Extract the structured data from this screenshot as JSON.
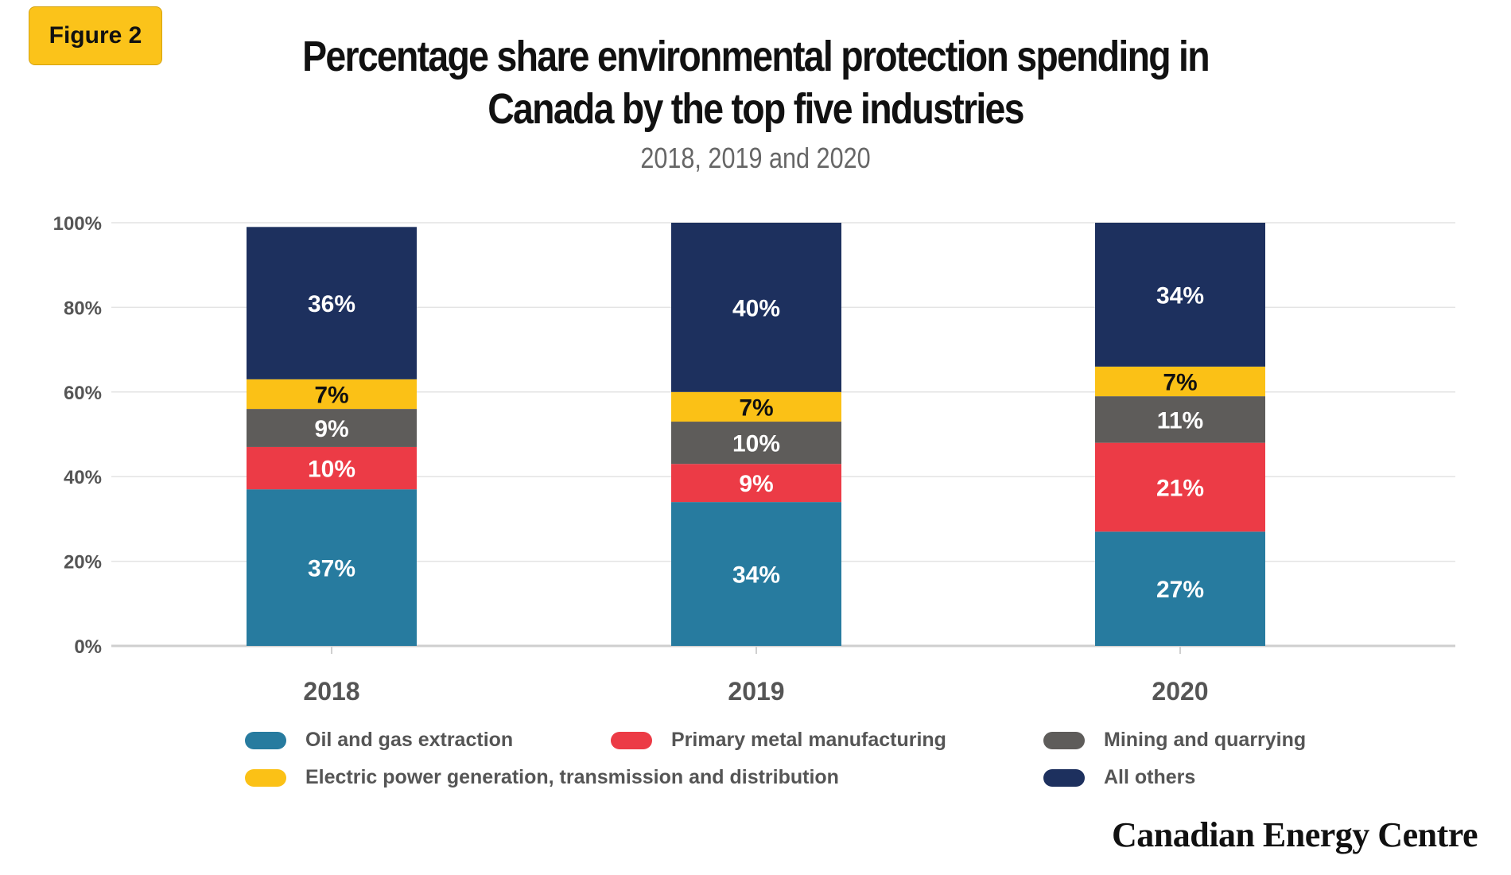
{
  "badge": "Figure 2",
  "title_line1": "Percentage share environmental protection spending in",
  "title_line2": "Canada by the top five industries",
  "subtitle": "2018, 2019 and 2020",
  "brand": "Canadian Energy Centre",
  "legend": [
    {
      "label": "Oil and gas extraction",
      "color": "#277b9f"
    },
    {
      "label": "Primary metal manufacturing",
      "color": "#ec3b46"
    },
    {
      "label": "Mining and quarrying",
      "color": "#5e5c5a"
    },
    {
      "label": "Electric power generation, transmission and distribution",
      "color": "#fbc116"
    },
    {
      "label": "All others",
      "color": "#1d305e"
    }
  ],
  "chart_data": {
    "type": "bar",
    "stacked": true,
    "categories": [
      "2018",
      "2019",
      "2020"
    ],
    "ylim": [
      0,
      100
    ],
    "yticks": [
      "0%",
      "20%",
      "40%",
      "60%",
      "80%",
      "100%"
    ],
    "grid": true,
    "legend_position": "bottom",
    "series": [
      {
        "name": "Oil and gas extraction",
        "color": "#277b9f",
        "values": [
          37,
          34,
          27
        ],
        "labels": [
          "37%",
          "34%",
          "27%"
        ],
        "label_color": "#ffffff"
      },
      {
        "name": "Primary metal manufacturing",
        "color": "#ec3b46",
        "values": [
          10,
          9,
          21
        ],
        "labels": [
          "10%",
          "9%",
          "21%"
        ],
        "label_color": "#ffffff"
      },
      {
        "name": "Mining and quarrying",
        "color": "#5e5c5a",
        "values": [
          9,
          10,
          11
        ],
        "labels": [
          "9%",
          "10%",
          "11%"
        ],
        "label_color": "#ffffff"
      },
      {
        "name": "Electric power generation, transmission and distribution",
        "color": "#fbc116",
        "values": [
          7,
          7,
          7
        ],
        "labels": [
          "7%",
          "7%",
          "7%"
        ],
        "label_color": "#111111"
      },
      {
        "name": "All others",
        "color": "#1d305e",
        "values": [
          36,
          40,
          34
        ],
        "labels": [
          "36%",
          "40%",
          "34%"
        ],
        "label_color": "#ffffff"
      }
    ]
  }
}
